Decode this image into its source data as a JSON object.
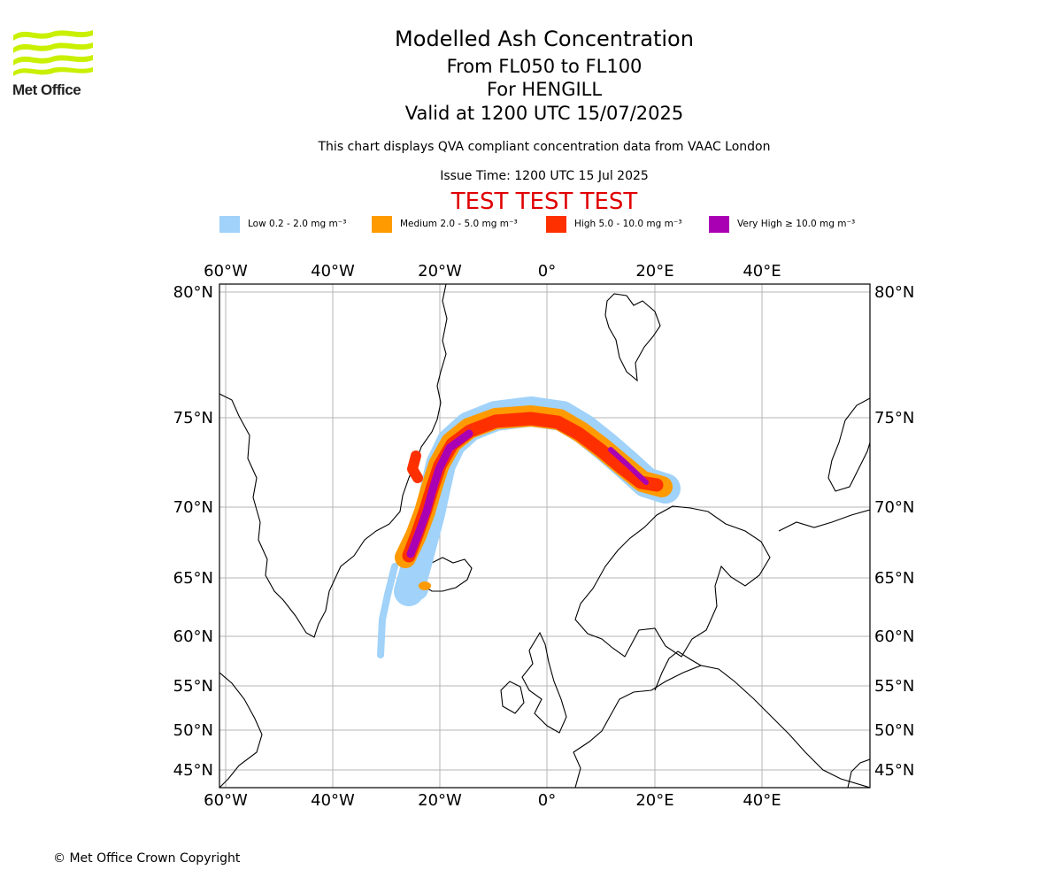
{
  "logo": {
    "text": "Met Office"
  },
  "titles": {
    "main": "Modelled Ash Concentration",
    "levels": "From FL050 to FL100",
    "volcano": "For HENGILL",
    "valid": "Valid at 1200 UTC 15/07/2025",
    "subtitle": "This chart displays QVA compliant concentration data from VAAC London",
    "issue_time": "Issue Time: 1200 UTC 15 Jul 2025",
    "test_banner": "TEST TEST TEST"
  },
  "legend": [
    {
      "label": "Low 0.2 - 2.0 mg m⁻³",
      "color": "#a0d2fa"
    },
    {
      "label": "Medium 2.0 - 5.0 mg m⁻³",
      "color": "#ff9a00"
    },
    {
      "label": "High 5.0 - 10.0 mg m⁻³",
      "color": "#ff3000"
    },
    {
      "label": "Very High ≥ 10.0 mg m⁻³",
      "color": "#aa00b4"
    }
  ],
  "map": {
    "projection": "polar stereographic (north)",
    "lon_labels": [
      "60°W",
      "40°W",
      "20°W",
      "0°",
      "20°E",
      "40°E"
    ],
    "lat_labels": [
      "80°N",
      "75°N",
      "70°N",
      "65°N",
      "60°N",
      "55°N",
      "50°N",
      "45°N"
    ],
    "colors": {
      "grid": "#b4b4b4",
      "coast": "#000000",
      "frame": "#000000"
    }
  },
  "footer": {
    "copyright": "© Met Office Crown Copyright"
  }
}
